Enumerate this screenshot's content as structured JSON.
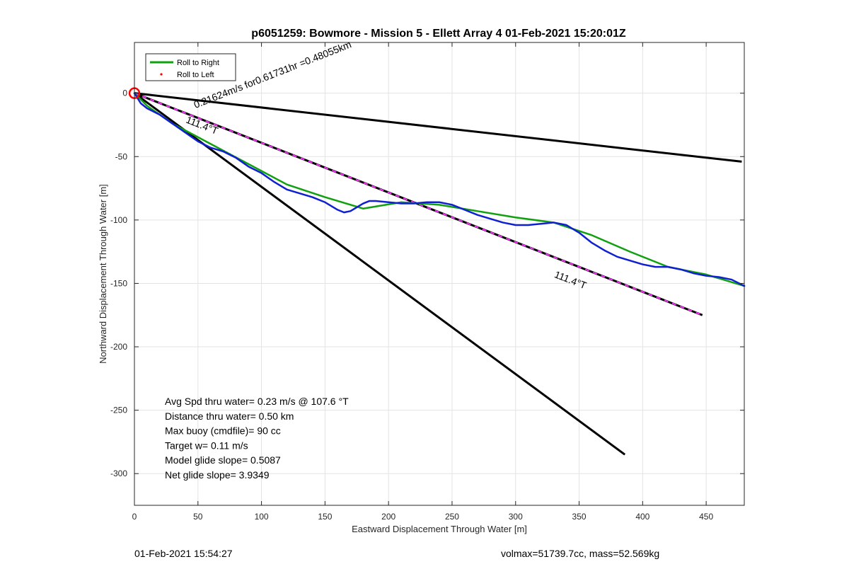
{
  "chart_data": {
    "type": "line",
    "title": "p6051259: Bowmore - Mission 5 - Ellett Array 4 01-Feb-2021 15:20:01Z",
    "xlabel": "Eastward Displacement Through Water [m]",
    "ylabel": "Northward Displacement Through Water [m]",
    "xlim": [
      0,
      480
    ],
    "ylim": [
      -325,
      40
    ],
    "xticks": [
      0,
      50,
      100,
      150,
      200,
      250,
      300,
      350,
      400,
      450
    ],
    "yticks": [
      0,
      -50,
      -100,
      -150,
      -200,
      -250,
      -300
    ],
    "grid": true,
    "legend_position": "top-left",
    "legend": [
      {
        "name": "Roll to Right",
        "color": "#10a010",
        "style": "line"
      },
      {
        "name": "Roll to Left",
        "color": "#ff0000",
        "style": "dot"
      }
    ],
    "series": [
      {
        "name": "Roll to Right",
        "color": "#10a010",
        "x": [
          0,
          10,
          30,
          60,
          90,
          120,
          150,
          180,
          210,
          240,
          270,
          300,
          330,
          360,
          390,
          420,
          450,
          480
        ],
        "y": [
          0,
          -10,
          -24,
          -40,
          -56,
          -72,
          -82,
          -91,
          -86,
          -88,
          -93,
          -98,
          -102,
          -112,
          -125,
          -137,
          -143,
          -152
        ]
      },
      {
        "name": "through-water track",
        "color": "#1020d0",
        "x": [
          0,
          5,
          10,
          20,
          30,
          40,
          50,
          60,
          70,
          80,
          90,
          100,
          110,
          120,
          130,
          140,
          150,
          160,
          165,
          170,
          175,
          180,
          185,
          190,
          200,
          210,
          220,
          230,
          240,
          250,
          260,
          270,
          280,
          290,
          300,
          310,
          320,
          330,
          340,
          350,
          360,
          370,
          380,
          390,
          400,
          410,
          420,
          430,
          440,
          450,
          460,
          470,
          480
        ],
        "y": [
          0,
          -8,
          -12,
          -17,
          -24,
          -31,
          -38,
          -43,
          -46,
          -51,
          -58,
          -63,
          -70,
          -76,
          -79,
          -82,
          -86,
          -92,
          -94,
          -93,
          -90,
          -87,
          -85,
          -85,
          -86,
          -87,
          -87,
          -86,
          -86,
          -88,
          -92,
          -96,
          -99,
          -102,
          -104,
          -104,
          -103,
          -102,
          -104,
          -110,
          -118,
          -124,
          -129,
          -132,
          -135,
          -137,
          -137,
          -139,
          -142,
          -144,
          -145,
          -147,
          -152
        ]
      }
    ],
    "reference_lines": [
      {
        "x": [
          0,
          478
        ],
        "y": [
          0,
          -54
        ],
        "color": "#000000"
      },
      {
        "x": [
          0,
          386
        ],
        "y": [
          0,
          -285
        ],
        "color": "#000000"
      },
      {
        "x": [
          0,
          447
        ],
        "y": [
          0,
          -175
        ],
        "color": "#000000",
        "overlay_color": "#ff33ff"
      }
    ],
    "start_marker": {
      "x": 0,
      "y": 0,
      "color": "#ff0000"
    },
    "annotations": [
      {
        "text": "0.21624m/s for0.61731hr =0.48055km",
        "x": 48,
        "y": -12,
        "rotate": -21.4
      },
      {
        "text": "111.4°T",
        "x": 40,
        "y": -23,
        "rotate": 21.4
      },
      {
        "text": "111.4°T",
        "x": 330,
        "y": -145,
        "rotate": 21.4
      }
    ],
    "stats": [
      "Avg Spd thru water=  0.23 m/s @ 107.6 °T",
      "Distance thru water=  0.50 km",
      "Max buoy (cmdfile)= 90 cc",
      "Target w= 0.11 m/s",
      "Model glide slope= 0.5087",
      "Net glide slope= 3.9349"
    ]
  },
  "footer": {
    "timestamp": "01-Feb-2021 15:54:27",
    "volmax_mass": "volmax=51739.7cc, mass=52.569kg"
  }
}
